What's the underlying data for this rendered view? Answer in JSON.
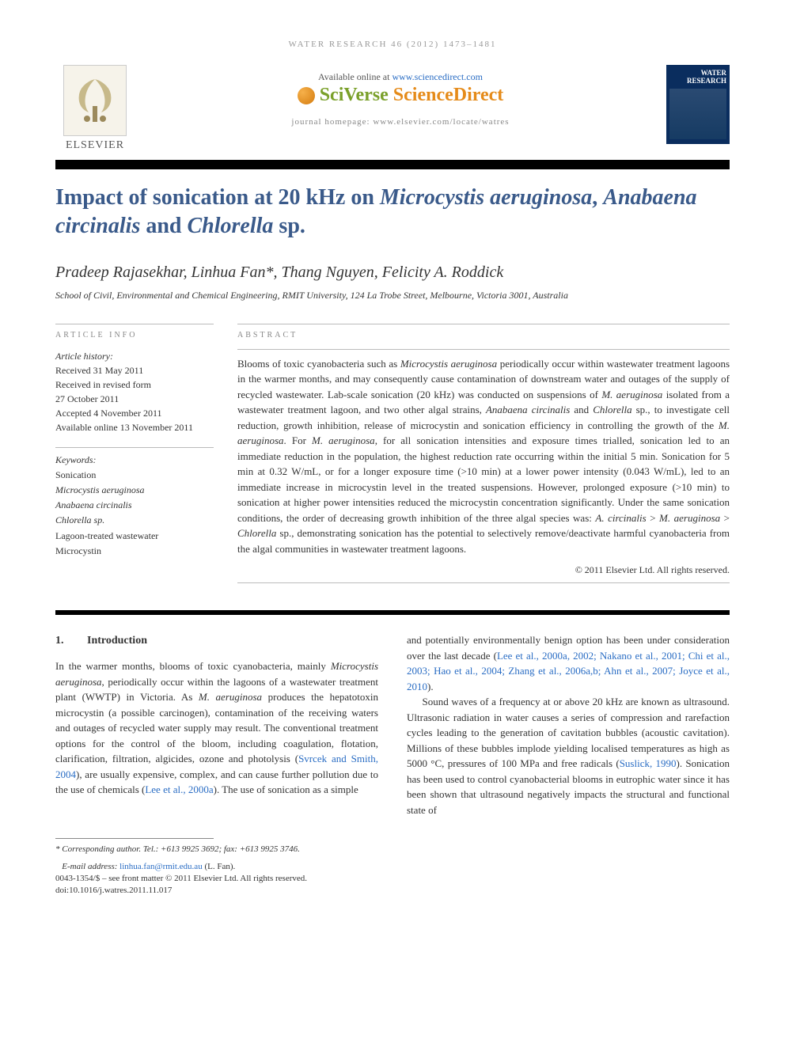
{
  "running_head": "WATER RESEARCH 46 (2012) 1473–1481",
  "online_banner_prefix": "Available online at ",
  "online_banner_link": "www.sciencedirect.com",
  "sciverse": {
    "sci": "SciVerse ",
    "direct": "ScienceDirect"
  },
  "elsevier_label": "ELSEVIER",
  "journal_homepage": "journal homepage: www.elsevier.com/locate/watres",
  "journal_cover": {
    "line1": "WATER",
    "line2": "RESEARCH"
  },
  "title_parts": {
    "pre": "Impact of sonication at 20 kHz on ",
    "sp1": "Microcystis aeruginosa",
    "mid1": ", ",
    "sp2": "Anabaena circinalis",
    "mid2": " and ",
    "sp3": "Chlorella",
    "post": " sp."
  },
  "authors": "Pradeep Rajasekhar, Linhua Fan*, Thang Nguyen, Felicity A. Roddick",
  "affiliation": "School of Civil, Environmental and Chemical Engineering, RMIT University, 124 La Trobe Street, Melbourne, Victoria 3001, Australia",
  "article_info_label": "ARTICLE INFO",
  "abstract_label": "ABSTRACT",
  "history": {
    "head": "Article history:",
    "received": "Received 31 May 2011",
    "revised1": "Received in revised form",
    "revised2": "27 October 2011",
    "accepted": "Accepted 4 November 2011",
    "online": "Available online 13 November 2011"
  },
  "keywords_head": "Keywords:",
  "keywords": [
    {
      "text": "Sonication",
      "italic": false
    },
    {
      "text": "Microcystis aeruginosa",
      "italic": true
    },
    {
      "text": "Anabaena circinalis",
      "italic": true
    },
    {
      "text": "Chlorella sp.",
      "italic": true
    },
    {
      "text": "Lagoon-treated wastewater",
      "italic": false
    },
    {
      "text": "Microcystin",
      "italic": false
    }
  ],
  "abstract_html": "Blooms of toxic cyanobacteria such as <span class=\"it\">Microcystis aeruginosa</span> periodically occur within wastewater treatment lagoons in the warmer months, and may consequently cause contamination of downstream water and outages of the supply of recycled wastewater. Lab-scale sonication (20 kHz) was conducted on suspensions of <span class=\"it\">M. aeruginosa</span> isolated from a wastewater treatment lagoon, and two other algal strains, <span class=\"it\">Anabaena circinalis</span> and <span class=\"it\">Chlorella</span> sp., to investigate cell reduction, growth inhibition, release of microcystin and sonication efficiency in controlling the growth of the <span class=\"it\">M. aeruginosa</span>. For <span class=\"it\">M. aeruginosa</span>, for all sonication intensities and exposure times trialled, sonication led to an immediate reduction in the population, the highest reduction rate occurring within the initial 5 min. Sonication for 5 min at 0.32 W/mL, or for a longer exposure time (&gt;10 min) at a lower power intensity (0.043 W/mL), led to an immediate increase in microcystin level in the treated suspensions. However, prolonged exposure (&gt;10 min) to sonication at higher power intensities reduced the microcystin concentration significantly. Under the same sonication conditions, the order of decreasing growth inhibition of the three algal species was: <span class=\"it\">A. circinalis</span> &gt; <span class=\"it\">M. aeruginosa</span> &gt; <span class=\"it\">Chlorella</span> sp., demonstrating sonication has the potential to selectively remove/deactivate harmful cyanobacteria from the algal communities in wastewater treatment lagoons.",
  "copyright": "© 2011 Elsevier Ltd. All rights reserved.",
  "intro_num": "1.",
  "intro_head": "Introduction",
  "intro_col1_html": "In the warmer months, blooms of toxic cyanobacteria, mainly <span class=\"it\">Microcystis aeruginosa</span>, periodically occur within the lagoons of a wastewater treatment plant (WWTP) in Victoria. As <span class=\"it\">M. aeruginosa</span> produces the hepatotoxin microcystin (a possible carcinogen), contamination of the receiving waters and outages of recycled water supply may result. The conventional treatment options for the control of the bloom, including coagulation, flotation, clarification, filtration, algicides, ozone and photolysis (<a href=\"#\">Svrcek and Smith, 2004</a>), are usually expensive, complex, and can cause further pollution due to the use of chemicals (<a href=\"#\">Lee et al., 2000a</a>). The use of sonication as a simple",
  "intro_col2_p1_html": "and potentially environmentally benign option has been under consideration over the last decade (<a href=\"#\">Lee et al., 2000a, 2002; Nakano et al., 2001; Chi et al., 2003; Hao et al., 2004; Zhang et al., 2006a,b; Ahn et al., 2007; Joyce et al., 2010</a>).",
  "intro_col2_p2_html": "Sound waves of a frequency at or above 20 kHz are known as ultrasound. Ultrasonic radiation in water causes a series of compression and rarefaction cycles leading to the generation of cavitation bubbles (acoustic cavitation). Millions of these bubbles implode yielding localised temperatures as high as 5000 °C, pressures of 100 MPa and free radicals (<a href=\"#\">Suslick, 1990</a>). Sonication has been used to control cyanobacterial blooms in eutrophic water since it has been shown that ultrasound negatively impacts the structural and functional state of",
  "footnote": {
    "corr": "* Corresponding author. Tel.: +613 9925 3692; fax: +613 9925 3746.",
    "email_label": "E-mail address: ",
    "email": "linhua.fan@rmit.edu.au",
    "email_who": " (L. Fan)."
  },
  "doi_line1": "0043-1354/$ – see front matter © 2011 Elsevier Ltd. All rights reserved.",
  "doi_line2": "doi:10.1016/j.watres.2011.11.017",
  "colors": {
    "title_color": "#3a5a8a",
    "link_color": "#2a6dc4",
    "cover_bg": "#0a2d5e"
  }
}
